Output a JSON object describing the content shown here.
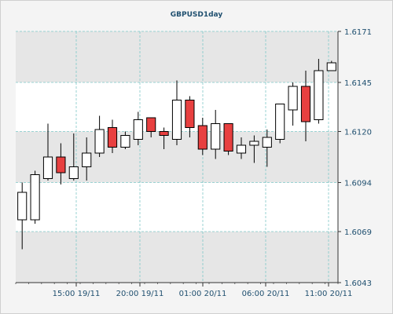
{
  "chart_data": {
    "type": "candlestick",
    "title": "GBPUSD1day",
    "y_ticks": [
      "1.6171",
      "1.6145",
      "1.6120",
      "1.6094",
      "1.6069",
      "1.6043"
    ],
    "ylim": [
      1.6043,
      1.6171
    ],
    "x_tick_labels": [
      "15:00 19/11",
      "20:00 19/11",
      "01:00 20/11",
      "06:00 20/11",
      "11:00 20/11"
    ],
    "grid": true,
    "colors": {
      "bull_fill": "#ffffff",
      "bear_fill": "#e84040",
      "wick": "#000000",
      "grid": "#7fc8c8",
      "band": "#e6e6e6",
      "text": "#1f4f6f"
    },
    "candles": [
      {
        "open": 1.6075,
        "high": 1.6094,
        "low": 1.606,
        "close": 1.6089
      },
      {
        "open": 1.6075,
        "high": 1.61,
        "low": 1.6073,
        "close": 1.6098
      },
      {
        "open": 1.6096,
        "high": 1.6124,
        "low": 1.6095,
        "close": 1.6107
      },
      {
        "open": 1.6107,
        "high": 1.6114,
        "low": 1.6093,
        "close": 1.6099
      },
      {
        "open": 1.6096,
        "high": 1.6119,
        "low": 1.6095,
        "close": 1.6102
      },
      {
        "open": 1.6102,
        "high": 1.6117,
        "low": 1.6095,
        "close": 1.6109
      },
      {
        "open": 1.6109,
        "high": 1.6128,
        "low": 1.6107,
        "close": 1.6121
      },
      {
        "open": 1.6122,
        "high": 1.6126,
        "low": 1.6109,
        "close": 1.6112
      },
      {
        "open": 1.6112,
        "high": 1.612,
        "low": 1.6111,
        "close": 1.6118
      },
      {
        "open": 1.6116,
        "high": 1.613,
        "low": 1.6113,
        "close": 1.6126
      },
      {
        "open": 1.6127,
        "high": 1.6127,
        "low": 1.6117,
        "close": 1.612
      },
      {
        "open": 1.612,
        "high": 1.6122,
        "low": 1.6111,
        "close": 1.6118
      },
      {
        "open": 1.6116,
        "high": 1.6146,
        "low": 1.6113,
        "close": 1.6136
      },
      {
        "open": 1.6136,
        "high": 1.6138,
        "low": 1.6117,
        "close": 1.6122
      },
      {
        "open": 1.6123,
        "high": 1.6127,
        "low": 1.6108,
        "close": 1.6111
      },
      {
        "open": 1.6111,
        "high": 1.6131,
        "low": 1.6106,
        "close": 1.6124
      },
      {
        "open": 1.6124,
        "high": 1.6124,
        "low": 1.6108,
        "close": 1.611
      },
      {
        "open": 1.6109,
        "high": 1.6117,
        "low": 1.6106,
        "close": 1.6113
      },
      {
        "open": 1.6113,
        "high": 1.6118,
        "low": 1.6104,
        "close": 1.6115
      },
      {
        "open": 1.6112,
        "high": 1.6121,
        "low": 1.6102,
        "close": 1.6117
      },
      {
        "open": 1.6116,
        "high": 1.6134,
        "low": 1.6114,
        "close": 1.6134
      },
      {
        "open": 1.6131,
        "high": 1.6145,
        "low": 1.6123,
        "close": 1.6143
      },
      {
        "open": 1.6143,
        "high": 1.6151,
        "low": 1.6115,
        "close": 1.6125
      },
      {
        "open": 1.6126,
        "high": 1.6157,
        "low": 1.6124,
        "close": 1.6151
      },
      {
        "open": 1.6151,
        "high": 1.6156,
        "low": 1.6151,
        "close": 1.6155
      }
    ]
  }
}
